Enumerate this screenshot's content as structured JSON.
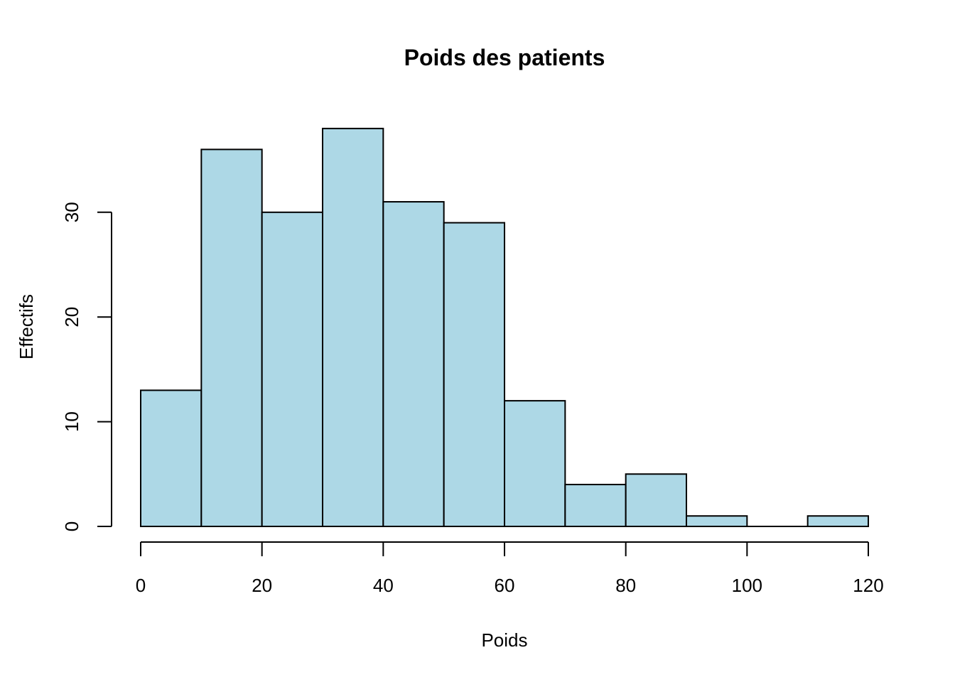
{
  "chart_data": {
    "type": "bar",
    "subtype": "histogram",
    "title": "Poids des patients",
    "xlabel": "Poids",
    "ylabel": "Effectifs",
    "bins": [
      {
        "from": 0,
        "to": 10,
        "count": 13
      },
      {
        "from": 10,
        "to": 20,
        "count": 36
      },
      {
        "from": 20,
        "to": 30,
        "count": 30
      },
      {
        "from": 30,
        "to": 40,
        "count": 38
      },
      {
        "from": 40,
        "to": 50,
        "count": 31
      },
      {
        "from": 50,
        "to": 60,
        "count": 29
      },
      {
        "from": 60,
        "to": 70,
        "count": 12
      },
      {
        "from": 70,
        "to": 80,
        "count": 4
      },
      {
        "from": 80,
        "to": 90,
        "count": 5
      },
      {
        "from": 90,
        "to": 100,
        "count": 1
      },
      {
        "from": 100,
        "to": 110,
        "count": 0
      },
      {
        "from": 110,
        "to": 120,
        "count": 1
      }
    ],
    "xlim": [
      0,
      120
    ],
    "ylim": [
      0,
      38
    ],
    "x_ticks": [
      0,
      20,
      40,
      60,
      80,
      100,
      120
    ],
    "y_ticks": [
      0,
      10,
      20,
      30
    ],
    "grid": false,
    "legend": "none",
    "colors": {
      "bar_fill": "#add8e6",
      "bar_stroke": "#000000",
      "axis": "#000000",
      "background": "#ffffff"
    }
  }
}
